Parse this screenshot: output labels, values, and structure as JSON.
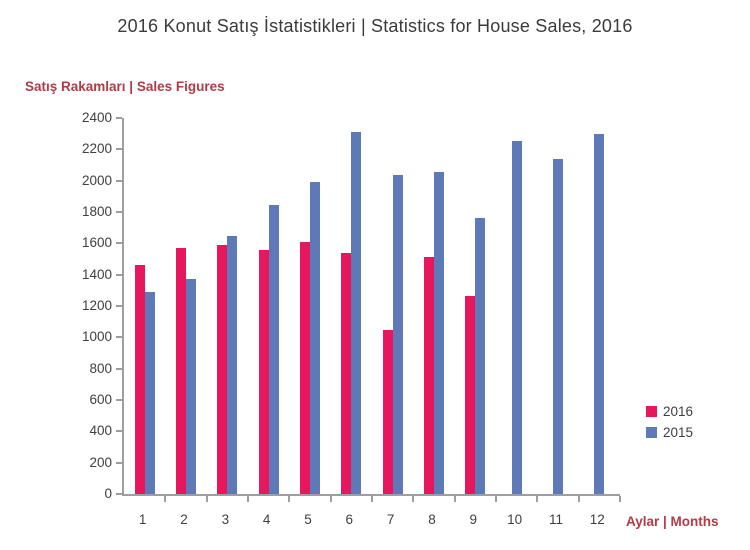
{
  "title": "2016 Konut Satış İstatistikleri | Statistics for House Sales, 2016",
  "chart_data": {
    "type": "bar",
    "title": "2016 Konut Satış İstatistikleri | Statistics for House Sales, 2016",
    "categories": [
      "1",
      "2",
      "3",
      "4",
      "5",
      "6",
      "7",
      "8",
      "9",
      "10",
      "11",
      "12"
    ],
    "series": [
      {
        "name": "2016",
        "color": "#e6175c",
        "values": [
          1460,
          1570,
          1590,
          1560,
          1610,
          1540,
          1050,
          1515,
          1265,
          null,
          null,
          null
        ]
      },
      {
        "name": "2015",
        "color": "#5e79b8",
        "values": [
          1290,
          1370,
          1650,
          1845,
          1990,
          2310,
          2035,
          2055,
          1765,
          2255,
          2140,
          2300
        ]
      }
    ],
    "xlabel": "Aylar | Months",
    "ylabel": "Satış Rakamları | Sales Figures",
    "ylim": [
      0,
      2400
    ],
    "ytick_step": 200,
    "grid": false,
    "legend_position": "right",
    "legend": [
      "2016",
      "2015"
    ]
  },
  "colors": {
    "background": "#ffffff",
    "axis": "#9e9e9e",
    "tick_label": "#3f3f3f",
    "title_text": "#3b3b3b",
    "axis_title_red": "#b23b45"
  }
}
